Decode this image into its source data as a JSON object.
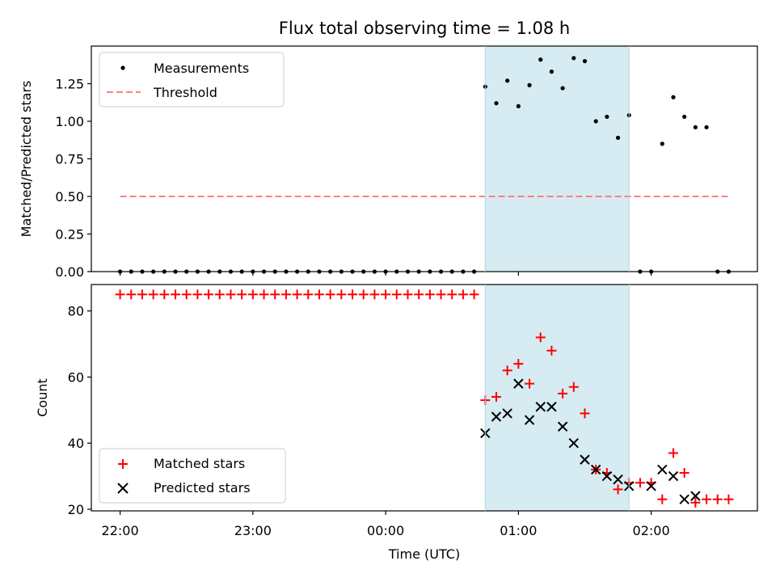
{
  "chart_data": [
    {
      "type": "scatter",
      "title": "Flux total observing time = 1.08 h",
      "xlabel": "",
      "ylabel": "Matched/Predicted stars",
      "xlim": [
        "21:47",
        "02:48"
      ],
      "ylim": [
        0,
        1.5
      ],
      "yticks": [
        0.0,
        0.25,
        0.5,
        0.75,
        1.0,
        1.25
      ],
      "ytick_labels": [
        "0.00",
        "0.25",
        "0.50",
        "0.75",
        "1.00",
        "1.25"
      ],
      "grid": false,
      "legend": "top-left",
      "highlight_span": {
        "x": [
          "00:45",
          "01:50"
        ],
        "color": "#add8e6"
      },
      "series": [
        {
          "name": "Measurements",
          "marker": "dot",
          "color": "#000000",
          "x": [
            "22:00",
            "22:05",
            "22:10",
            "22:15",
            "22:20",
            "22:25",
            "22:30",
            "22:35",
            "22:40",
            "22:45",
            "22:50",
            "22:55",
            "23:00",
            "23:05",
            "23:10",
            "23:15",
            "23:20",
            "23:25",
            "23:30",
            "23:35",
            "23:40",
            "23:45",
            "23:50",
            "23:55",
            "00:00",
            "00:05",
            "00:10",
            "00:15",
            "00:20",
            "00:25",
            "00:30",
            "00:35",
            "00:40",
            "00:45",
            "00:50",
            "00:55",
            "01:00",
            "01:05",
            "01:10",
            "01:15",
            "01:20",
            "01:25",
            "01:30",
            "01:35",
            "01:40",
            "01:45",
            "01:50",
            "01:55",
            "02:00",
            "02:05",
            "02:10",
            "02:15",
            "02:20",
            "02:25",
            "02:30",
            "02:35"
          ],
          "y": [
            0,
            0,
            0,
            0,
            0,
            0,
            0,
            0,
            0,
            0,
            0,
            0,
            0,
            0,
            0,
            0,
            0,
            0,
            0,
            0,
            0,
            0,
            0,
            0,
            0,
            0,
            0,
            0,
            0,
            0,
            0,
            0,
            0,
            1.23,
            1.12,
            1.27,
            1.1,
            1.24,
            1.41,
            1.33,
            1.22,
            1.42,
            1.4,
            1.0,
            1.03,
            0.89,
            1.04,
            0,
            0,
            0.85,
            1.16,
            1.03,
            0.96,
            0.96,
            0,
            0
          ]
        },
        {
          "name": "Threshold",
          "style": "dashed",
          "color": "#ff7f7f",
          "x": [
            "22:00",
            "02:35"
          ],
          "y": [
            0.5,
            0.5
          ]
        }
      ]
    },
    {
      "type": "scatter",
      "title": "",
      "xlabel": "Time (UTC)",
      "ylabel": "Count",
      "xlim": [
        "21:47",
        "02:48"
      ],
      "ylim": [
        19.5,
        88
      ],
      "xticks": [
        "22:00",
        "23:00",
        "00:00",
        "01:00",
        "02:00"
      ],
      "yticks": [
        20,
        40,
        60,
        80
      ],
      "ytick_labels": [
        "20",
        "40",
        "60",
        "80"
      ],
      "grid": false,
      "legend": "bottom-left",
      "highlight_span": {
        "x": [
          "00:45",
          "01:50"
        ],
        "color": "#add8e6"
      },
      "series": [
        {
          "name": "Matched stars",
          "marker": "plus",
          "color": "#ff0000",
          "x": [
            "22:00",
            "22:05",
            "22:10",
            "22:15",
            "22:20",
            "22:25",
            "22:30",
            "22:35",
            "22:40",
            "22:45",
            "22:50",
            "22:55",
            "23:00",
            "23:05",
            "23:10",
            "23:15",
            "23:20",
            "23:25",
            "23:30",
            "23:35",
            "23:40",
            "23:45",
            "23:50",
            "23:55",
            "00:00",
            "00:05",
            "00:10",
            "00:15",
            "00:20",
            "00:25",
            "00:30",
            "00:35",
            "00:40",
            "00:45",
            "00:50",
            "00:55",
            "01:00",
            "01:05",
            "01:10",
            "01:15",
            "01:20",
            "01:25",
            "01:30",
            "01:35",
            "01:40",
            "01:45",
            "01:50",
            "01:55",
            "02:00",
            "02:05",
            "02:10",
            "02:15",
            "02:20",
            "02:25",
            "02:30",
            "02:35"
          ],
          "y": [
            85,
            85,
            85,
            85,
            85,
            85,
            85,
            85,
            85,
            85,
            85,
            85,
            85,
            85,
            85,
            85,
            85,
            85,
            85,
            85,
            85,
            85,
            85,
            85,
            85,
            85,
            85,
            85,
            85,
            85,
            85,
            85,
            85,
            53,
            54,
            62,
            64,
            58,
            72,
            68,
            55,
            57,
            49,
            32,
            31,
            26,
            28,
            28,
            28,
            23,
            37,
            31,
            22,
            23,
            23,
            23
          ]
        },
        {
          "name": "Predicted stars",
          "marker": "x",
          "color": "#000000",
          "x": [
            "00:45",
            "00:50",
            "00:55",
            "01:00",
            "01:05",
            "01:10",
            "01:15",
            "01:20",
            "01:25",
            "01:30",
            "01:35",
            "01:40",
            "01:45",
            "01:50",
            "02:00",
            "02:05",
            "02:10",
            "02:15",
            "02:20"
          ],
          "y": [
            43,
            48,
            49,
            58,
            47,
            51,
            51,
            45,
            40,
            35,
            32,
            30,
            29,
            27,
            27,
            32,
            30,
            23,
            24
          ]
        }
      ]
    }
  ]
}
